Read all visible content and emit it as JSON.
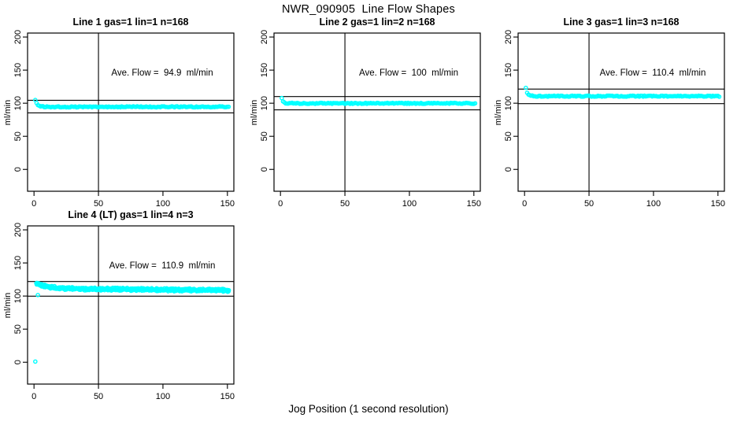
{
  "figure": {
    "title": "NWR_090905  Line Flow Shapes",
    "xlabel": "Jog Position (1 second resolution)",
    "background_color": "#FFFFFF",
    "point_color": "#00FFFF",
    "axis_color": "#000000",
    "legend": "none",
    "grid": "off"
  },
  "chart_data": [
    {
      "type": "scatter",
      "title": "Line 1 gas=1 lin=1 n=168",
      "annotation": "Ave. Flow =  94.9  ml/min",
      "ylabel": "ml/min",
      "n": 168,
      "ave_flow_ml_min": 94.9,
      "hlines": [
        104.4,
        85.4
      ],
      "vline": 50,
      "xticks": [
        0,
        50,
        100,
        150
      ],
      "yticks": [
        0,
        50,
        100,
        150,
        200
      ],
      "xlim": [
        -5,
        155
      ],
      "ylim": [
        -33,
        206
      ],
      "jitter": 0.8,
      "layers": 1,
      "points": [
        [
          1,
          104.8
        ],
        [
          2,
          100.3
        ],
        [
          3,
          97.8
        ],
        [
          4,
          96.3
        ],
        [
          5,
          95.4
        ],
        [
          6,
          95.0
        ],
        [
          8,
          94.7
        ],
        [
          10,
          94.6
        ],
        [
          15,
          94.5
        ],
        [
          20,
          94.5
        ],
        [
          30,
          94.5
        ],
        [
          50,
          94.5
        ],
        [
          70,
          94.6
        ],
        [
          90,
          94.5
        ],
        [
          110,
          94.6
        ],
        [
          130,
          94.5
        ],
        [
          151,
          94.5
        ]
      ],
      "outliers": []
    },
    {
      "type": "scatter",
      "title": "Line 2 gas=1 lin=2 n=168",
      "annotation": "Ave. Flow =  100  ml/min",
      "ylabel": "ml/min",
      "n": 168,
      "ave_flow_ml_min": 100,
      "hlines": [
        110.0,
        90.0
      ],
      "vline": 50,
      "xticks": [
        0,
        50,
        100,
        150
      ],
      "yticks": [
        0,
        50,
        100,
        150,
        200
      ],
      "xlim": [
        -5,
        155
      ],
      "ylim": [
        -33,
        206
      ],
      "jitter": 0.8,
      "layers": 1,
      "points": [
        [
          1,
          107.2
        ],
        [
          2,
          103.2
        ],
        [
          3,
          101.3
        ],
        [
          4,
          100.4
        ],
        [
          5,
          100.1
        ],
        [
          7,
          99.9
        ],
        [
          10,
          99.9
        ],
        [
          20,
          99.8
        ],
        [
          40,
          99.8
        ],
        [
          70,
          99.8
        ],
        [
          100,
          99.8
        ],
        [
          130,
          99.8
        ],
        [
          151,
          99.8
        ]
      ],
      "outliers": []
    },
    {
      "type": "scatter",
      "title": "Line 3 gas=1 lin=3 n=168",
      "annotation": "Ave. Flow =  110.4  ml/min",
      "ylabel": "ml/min",
      "n": 168,
      "ave_flow_ml_min": 110.4,
      "hlines": [
        121.4,
        99.4
      ],
      "vline": 50,
      "xticks": [
        0,
        50,
        100,
        150
      ],
      "yticks": [
        0,
        50,
        100,
        150,
        200
      ],
      "xlim": [
        -5,
        155
      ],
      "ylim": [
        -33,
        206
      ],
      "jitter": 0.8,
      "layers": 1,
      "points": [
        [
          1,
          124.0
        ],
        [
          2,
          116.0
        ],
        [
          3,
          112.6
        ],
        [
          4,
          111.5
        ],
        [
          5,
          111.0
        ],
        [
          7,
          110.8
        ],
        [
          10,
          110.7
        ],
        [
          20,
          110.6
        ],
        [
          40,
          110.6
        ],
        [
          70,
          110.6
        ],
        [
          100,
          110.6
        ],
        [
          130,
          110.6
        ],
        [
          151,
          110.5
        ]
      ],
      "outliers": []
    },
    {
      "type": "scatter",
      "title": "Line 4 (LT) gas=1 lin=4 n=3",
      "annotation": "Ave. Flow =  110.9  ml/min",
      "ylabel": "ml/min",
      "n": 3,
      "ave_flow_ml_min": 110.9,
      "hlines": [
        122.0,
        99.8
      ],
      "vline": 50,
      "xticks": [
        0,
        50,
        100,
        150
      ],
      "yticks": [
        0,
        50,
        100,
        150,
        200
      ],
      "xlim": [
        -5,
        155
      ],
      "ylim": [
        -33,
        206
      ],
      "jitter": 1.3,
      "layers": 3,
      "points": [
        [
          2,
          119.3
        ],
        [
          4,
          117.6
        ],
        [
          6,
          116.2
        ],
        [
          8,
          115.2
        ],
        [
          10,
          114.4
        ],
        [
          15,
          112.9
        ],
        [
          20,
          112.1
        ],
        [
          25,
          111.6
        ],
        [
          30,
          111.2
        ],
        [
          40,
          110.8
        ],
        [
          50,
          110.6
        ],
        [
          60,
          110.3
        ],
        [
          75,
          110.0
        ],
        [
          90,
          109.7
        ],
        [
          105,
          109.4
        ],
        [
          120,
          109.2
        ],
        [
          135,
          108.9
        ],
        [
          151,
          108.5
        ]
      ],
      "outliers": [
        [
          1,
          1
        ],
        [
          3,
          101.5
        ]
      ]
    }
  ]
}
